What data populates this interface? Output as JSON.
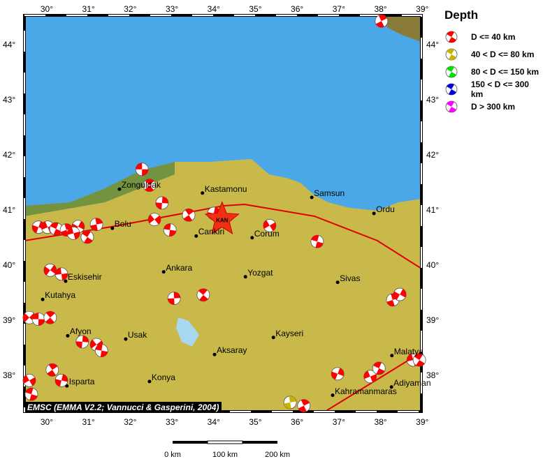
{
  "colors": {
    "sea": "#4aa8e8",
    "land": "#c9b84a",
    "fault": "#e00000",
    "shallow": "#ff0000",
    "mid": "#c8b400",
    "deep80": "#00e000",
    "deep150": "#0000e0",
    "deep300": "#ff00ff"
  },
  "map": {
    "lon_range": [
      29.5,
      39
    ],
    "lat_range": [
      37.3,
      44.5
    ],
    "lon_ticks": [
      "30°",
      "31°",
      "32°",
      "33°",
      "34°",
      "35°",
      "36°",
      "37°",
      "38°",
      "39°"
    ],
    "lat_ticks": [
      "44°",
      "43°",
      "42°",
      "41°",
      "40°",
      "39°",
      "38°"
    ]
  },
  "legend": {
    "title": "Depth",
    "items": [
      {
        "label": "D <= 40 km",
        "color": "#ff0000"
      },
      {
        "label": "40 < D <= 80 km",
        "color": "#c8b400"
      },
      {
        "label": "80 < D <= 150 km",
        "color": "#00e000"
      },
      {
        "label": "150 < D <= 300 km",
        "color": "#0000e0"
      },
      {
        "label": "D > 300 km",
        "color": "#ff00ff"
      }
    ]
  },
  "credit": "EMSC (EMMA V2.2; Vannucci & Gasperini, 2004)",
  "scale": {
    "labels": [
      "0 km",
      "100 km",
      "200 km"
    ]
  },
  "epicenter": {
    "label": "KAN",
    "lon": 34.22,
    "lat": 40.84
  },
  "cities": [
    {
      "name": "Zonguldak",
      "lon": 31.76,
      "lat": 41.39
    },
    {
      "name": "Kastamonu",
      "lon": 33.75,
      "lat": 41.32
    },
    {
      "name": "Samsun",
      "lon": 36.37,
      "lat": 41.24
    },
    {
      "name": "Ordu",
      "lon": 37.86,
      "lat": 40.95
    },
    {
      "name": "Bolu",
      "lon": 31.59,
      "lat": 40.68
    },
    {
      "name": "Cankiri",
      "lon": 33.6,
      "lat": 40.54
    },
    {
      "name": "Corum",
      "lon": 34.94,
      "lat": 40.51
    },
    {
      "name": "Ankara",
      "lon": 32.82,
      "lat": 39.89
    },
    {
      "name": "Yozgat",
      "lon": 34.78,
      "lat": 39.8
    },
    {
      "name": "Eskisehir",
      "lon": 30.47,
      "lat": 39.72
    },
    {
      "name": "Sivas",
      "lon": 36.99,
      "lat": 39.7
    },
    {
      "name": "Kutahya",
      "lon": 29.92,
      "lat": 39.39
    },
    {
      "name": "Afyon",
      "lon": 30.52,
      "lat": 38.73
    },
    {
      "name": "Usak",
      "lon": 31.91,
      "lat": 38.67
    },
    {
      "name": "Kayseri",
      "lon": 35.45,
      "lat": 38.7
    },
    {
      "name": "Aksaray",
      "lon": 34.04,
      "lat": 38.39
    },
    {
      "name": "Malatya",
      "lon": 38.29,
      "lat": 38.37
    },
    {
      "name": "Konya",
      "lon": 32.48,
      "lat": 37.9
    },
    {
      "name": "Isparta",
      "lon": 30.5,
      "lat": 37.82
    },
    {
      "name": "Adiyaman",
      "lon": 38.28,
      "lat": 37.8
    },
    {
      "name": "Kahramanmaras",
      "lon": 36.87,
      "lat": 37.65
    }
  ],
  "events": [
    [
      32.3,
      41.75,
      "shallow"
    ],
    [
      32.48,
      41.46,
      "shallow"
    ],
    [
      32.78,
      41.14,
      "shallow"
    ],
    [
      32.6,
      40.84,
      "shallow"
    ],
    [
      32.97,
      40.65,
      "shallow"
    ],
    [
      33.42,
      40.92,
      "shallow"
    ],
    [
      34.02,
      40.95,
      "shallow"
    ],
    [
      35.36,
      40.73,
      "shallow"
    ],
    [
      36.5,
      40.44,
      "shallow"
    ],
    [
      38.04,
      44.44,
      "shallow"
    ],
    [
      29.82,
      40.7,
      "shallow"
    ],
    [
      30.04,
      40.7,
      "shallow"
    ],
    [
      30.24,
      40.67,
      "shallow"
    ],
    [
      30.49,
      40.65,
      "shallow"
    ],
    [
      30.77,
      40.71,
      "shallow"
    ],
    [
      30.66,
      40.59,
      "shallow"
    ],
    [
      30.99,
      40.52,
      "shallow"
    ],
    [
      31.21,
      40.75,
      "shallow"
    ],
    [
      30.1,
      39.92,
      "shallow"
    ],
    [
      30.37,
      39.85,
      "shallow"
    ],
    [
      33.77,
      39.47,
      "shallow"
    ],
    [
      33.07,
      39.41,
      "shallow"
    ],
    [
      29.6,
      39.06,
      "shallow"
    ],
    [
      29.82,
      39.03,
      "shallow"
    ],
    [
      30.1,
      39.06,
      "shallow"
    ],
    [
      30.87,
      38.62,
      "shallow"
    ],
    [
      31.21,
      38.57,
      "shallow"
    ],
    [
      31.33,
      38.46,
      "shallow"
    ],
    [
      30.15,
      38.11,
      "shallow"
    ],
    [
      30.37,
      37.92,
      "shallow"
    ],
    [
      29.6,
      37.92,
      "shallow"
    ],
    [
      29.65,
      37.67,
      "shallow"
    ],
    [
      36.18,
      37.46,
      "shallow"
    ],
    [
      36.99,
      38.04,
      "shallow"
    ],
    [
      37.77,
      37.99,
      "shallow"
    ],
    [
      37.98,
      38.14,
      "shallow"
    ],
    [
      38.31,
      39.38,
      "shallow"
    ],
    [
      38.48,
      39.48,
      "shallow"
    ],
    [
      38.8,
      38.29,
      "shallow"
    ],
    [
      38.95,
      38.29,
      "shallow"
    ],
    [
      35.85,
      37.52,
      "mid"
    ]
  ]
}
